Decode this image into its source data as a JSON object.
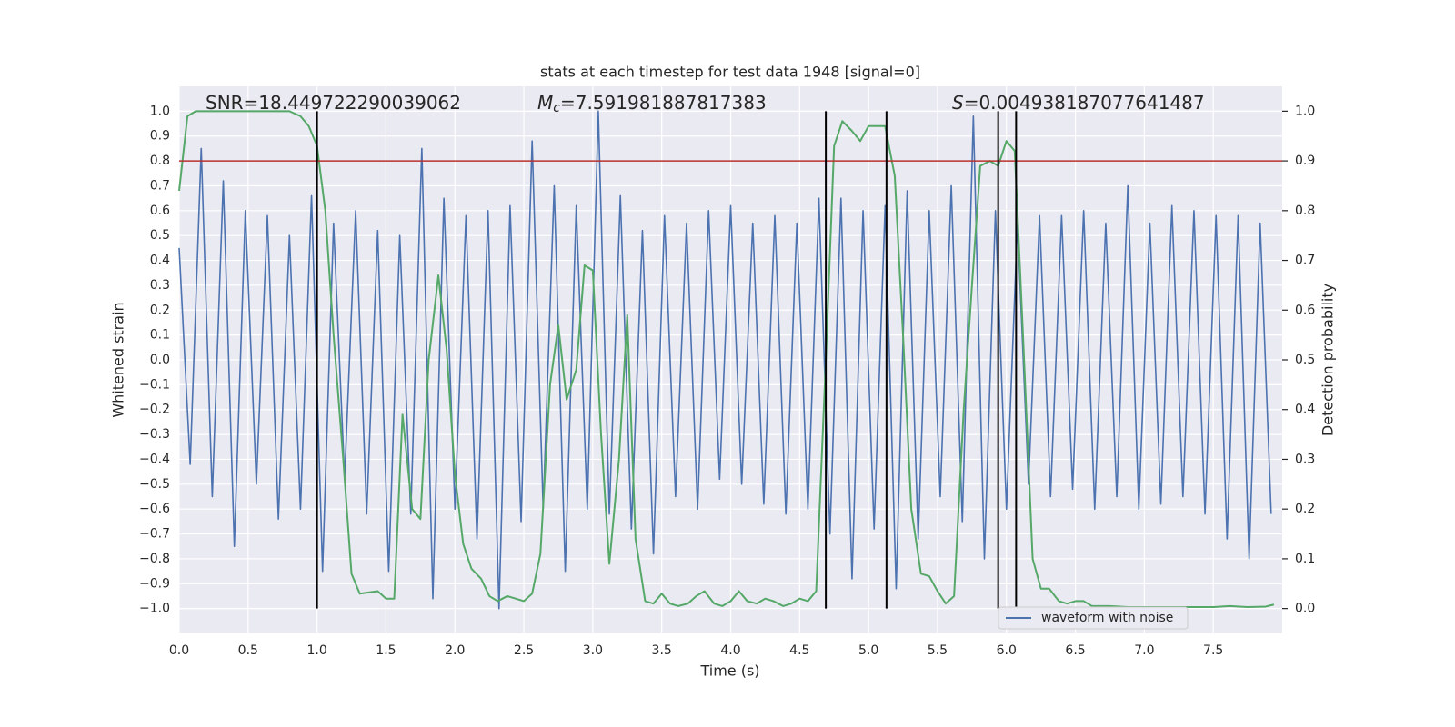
{
  "chart_data": {
    "type": "line",
    "title": "stats at each timestep for test data 1948 [signal=0]",
    "xlabel": "Time (s)",
    "ylabel": "Whitened strain",
    "y2label": "Detection probability",
    "xlim": [
      0,
      8
    ],
    "ylim": [
      -1.1,
      1.1
    ],
    "y2lim": [
      -0.05,
      1.05
    ],
    "xticks": [
      {
        "value": 0,
        "label": "0.0"
      },
      0.5,
      {
        "value": 1,
        "label": "1.0"
      },
      1.5,
      {
        "value": 2,
        "label": "2.0"
      },
      2.5,
      {
        "value": 3,
        "label": "3.0"
      },
      3.5,
      {
        "value": 4,
        "label": "4.0"
      },
      4.5,
      {
        "value": 5,
        "label": "5.0"
      },
      5.5,
      {
        "value": 6,
        "label": "6.0"
      },
      6.5,
      {
        "value": 7,
        "label": "7.0"
      },
      7.5
    ],
    "yticks": [
      {
        "value": -1,
        "label": "−1.0"
      },
      {
        "value": -0.9,
        "label": "−0.9"
      },
      {
        "value": -0.8,
        "label": "−0.8"
      },
      {
        "value": -0.7,
        "label": "−0.7"
      },
      {
        "value": -0.6,
        "label": "−0.6"
      },
      {
        "value": -0.5,
        "label": "−0.5"
      },
      {
        "value": -0.4,
        "label": "−0.4"
      },
      {
        "value": -0.3,
        "label": "−0.3"
      },
      {
        "value": -0.2,
        "label": "−0.2"
      },
      {
        "value": -0.1,
        "label": "−0.1"
      },
      {
        "value": 0,
        "label": "0.0"
      },
      0.1,
      0.2,
      0.3,
      0.4,
      0.5,
      0.6,
      0.7,
      0.8,
      0.9,
      {
        "value": 1,
        "label": "1.0"
      }
    ],
    "y2ticks": [
      {
        "value": 0,
        "label": "0.0"
      },
      0.1,
      0.2,
      0.3,
      0.4,
      0.5,
      0.6,
      0.7,
      0.8,
      0.9,
      {
        "value": 1,
        "label": "1.0"
      }
    ],
    "grid": true,
    "legend": "lower right",
    "series": [
      {
        "name": "waveform with noise",
        "color": "#4c72b0",
        "x": [
          0,
          0.08,
          0.16,
          0.24,
          0.32,
          0.4,
          0.48,
          0.56,
          0.64,
          0.72,
          0.8,
          0.88,
          0.96,
          1.04,
          1.12,
          1.2,
          1.28,
          1.36,
          1.44,
          1.52,
          1.6,
          1.68,
          1.76,
          1.84,
          1.92,
          2.0,
          2.08,
          2.16,
          2.24,
          2.32,
          2.4,
          2.48,
          2.56,
          2.64,
          2.72,
          2.8,
          2.88,
          2.96,
          3.04,
          3.12,
          3.2,
          3.28,
          3.36,
          3.44,
          3.52,
          3.6,
          3.68,
          3.76,
          3.84,
          3.92,
          4.0,
          4.08,
          4.16,
          4.24,
          4.32,
          4.4,
          4.48,
          4.56,
          4.64,
          4.72,
          4.8,
          4.88,
          4.96,
          5.04,
          5.12,
          5.2,
          5.28,
          5.36,
          5.44,
          5.52,
          5.6,
          5.68,
          5.76,
          5.84,
          5.92,
          6.0,
          6.08,
          6.16,
          6.24,
          6.32,
          6.4,
          6.48,
          6.56,
          6.64,
          6.72,
          6.8,
          6.88,
          6.96,
          7.04,
          7.12,
          7.2,
          7.28,
          7.36,
          7.44,
          7.52,
          7.6,
          7.68,
          7.76,
          7.84,
          7.92
        ],
        "values": [
          0.45,
          -0.42,
          0.85,
          -0.55,
          0.72,
          -0.75,
          0.6,
          -0.5,
          0.58,
          -0.64,
          0.5,
          -0.6,
          0.66,
          -0.85,
          0.55,
          -0.48,
          0.6,
          -0.62,
          0.52,
          -0.85,
          0.5,
          -0.62,
          0.85,
          -0.96,
          0.65,
          -0.6,
          0.58,
          -0.72,
          0.6,
          -1.0,
          0.62,
          -0.65,
          0.88,
          -0.6,
          0.7,
          -0.85,
          0.62,
          -0.6,
          1.0,
          -0.62,
          0.66,
          -0.68,
          0.52,
          -0.78,
          0.58,
          -0.55,
          0.55,
          -0.6,
          0.6,
          -0.48,
          0.62,
          -0.5,
          0.55,
          -0.58,
          0.58,
          -0.62,
          0.55,
          -0.6,
          0.65,
          -0.7,
          0.65,
          -0.88,
          0.6,
          -0.68,
          0.62,
          -0.92,
          0.68,
          -0.72,
          0.6,
          -0.55,
          0.7,
          -0.65,
          0.98,
          -0.8,
          0.6,
          -0.6,
          0.55,
          -0.5,
          0.58,
          -0.55,
          0.58,
          -0.52,
          0.6,
          -0.6,
          0.55,
          -0.55,
          0.7,
          -0.6,
          0.55,
          -0.58,
          0.62,
          -0.55,
          0.6,
          -0.62,
          0.58,
          -0.72,
          0.58,
          -0.8,
          0.55,
          -0.62
        ]
      },
      {
        "color": "#55a868",
        "axis": "y2",
        "x": [
          0.0,
          0.06,
          0.12,
          0.5,
          0.8,
          0.88,
          0.94,
          1.0,
          1.06,
          1.12,
          1.19,
          1.25,
          1.31,
          1.44,
          1.5,
          1.56,
          1.62,
          1.69,
          1.75,
          1.81,
          1.88,
          1.94,
          2.0,
          2.06,
          2.12,
          2.19,
          2.25,
          2.31,
          2.38,
          2.44,
          2.5,
          2.56,
          2.62,
          2.69,
          2.75,
          2.81,
          2.88,
          2.94,
          3.0,
          3.06,
          3.12,
          3.19,
          3.25,
          3.31,
          3.38,
          3.44,
          3.5,
          3.56,
          3.62,
          3.69,
          3.75,
          3.81,
          3.88,
          3.94,
          4.0,
          4.06,
          4.12,
          4.19,
          4.25,
          4.31,
          4.38,
          4.44,
          4.5,
          4.56,
          4.62,
          4.69,
          4.75,
          4.81,
          4.88,
          4.94,
          5.0,
          5.12,
          5.19,
          5.25,
          5.31,
          5.38,
          5.44,
          5.5,
          5.56,
          5.62,
          5.69,
          5.75,
          5.81,
          5.88,
          5.94,
          6.0,
          6.06,
          6.12,
          6.19,
          6.25,
          6.31,
          6.38,
          6.44,
          6.5,
          6.56,
          6.62,
          6.75,
          6.88,
          7.0,
          7.5,
          7.62,
          7.75,
          7.88,
          7.94
        ],
        "values": [
          0.84,
          0.99,
          1.0,
          1.0,
          1.0,
          0.99,
          0.97,
          0.93,
          0.8,
          0.55,
          0.3,
          0.07,
          0.03,
          0.035,
          0.02,
          0.02,
          0.39,
          0.2,
          0.18,
          0.5,
          0.67,
          0.52,
          0.27,
          0.13,
          0.08,
          0.06,
          0.025,
          0.015,
          0.025,
          0.02,
          0.015,
          0.03,
          0.11,
          0.45,
          0.57,
          0.42,
          0.48,
          0.69,
          0.68,
          0.35,
          0.09,
          0.3,
          0.59,
          0.14,
          0.015,
          0.01,
          0.03,
          0.01,
          0.005,
          0.01,
          0.025,
          0.035,
          0.01,
          0.005,
          0.015,
          0.035,
          0.015,
          0.01,
          0.02,
          0.015,
          0.005,
          0.01,
          0.02,
          0.015,
          0.035,
          0.5,
          0.93,
          0.98,
          0.96,
          0.94,
          0.97,
          0.97,
          0.87,
          0.55,
          0.2,
          0.07,
          0.065,
          0.035,
          0.01,
          0.025,
          0.4,
          0.65,
          0.89,
          0.9,
          0.89,
          0.94,
          0.92,
          0.55,
          0.1,
          0.04,
          0.04,
          0.015,
          0.01,
          0.015,
          0.015,
          0.005,
          0.005,
          0.003,
          0.003,
          0.003,
          0.005,
          0.003,
          0.004,
          0.008
        ]
      }
    ],
    "hlines": [
      {
        "y": 0.9,
        "axis": "y2",
        "color": "#b8302e"
      }
    ],
    "vlines": {
      "x": [
        1.0,
        4.69,
        5.13,
        5.94,
        6.07
      ],
      "ymin": -1.0,
      "ymax": 1.0,
      "color": "#000000"
    },
    "annotations": [
      {
        "text": "SNR=18.449722290039062"
      },
      {
        "symbol": "M",
        "subscript": "c",
        "text": "=7.591981887817383"
      },
      {
        "symbol": "S",
        "text": "=0.004938187077641487"
      }
    ]
  }
}
